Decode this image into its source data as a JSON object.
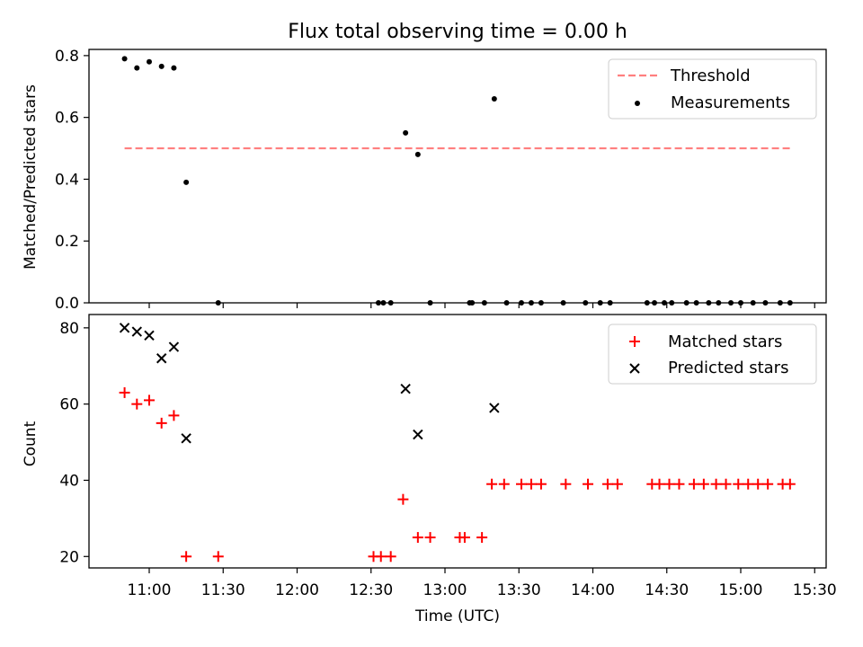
{
  "title": "Flux total observing time = 0.00 h",
  "xlabel": "Time (UTC)",
  "x_ticks": [
    "11:00",
    "11:30",
    "12:00",
    "12:30",
    "13:00",
    "13:30",
    "14:00",
    "14:30",
    "15:00",
    "15:30"
  ],
  "colors": {
    "threshold": "#ff7f7f",
    "measurement": "#000000",
    "matched": "#ff0000",
    "predicted": "#000000"
  },
  "chart_data": [
    {
      "type": "scatter",
      "ylabel": "Matched/Predicted stars",
      "ylim": [
        0,
        0.82
      ],
      "y_ticks": [
        "0.0",
        "0.2",
        "0.4",
        "0.6",
        "0.8"
      ],
      "legend_position": "top-right",
      "series": [
        {
          "name": "Threshold",
          "style": "dashed-line",
          "x": [
            "10:50",
            "15:21"
          ],
          "y": [
            0.5,
            0.5
          ]
        },
        {
          "name": "Measurements",
          "style": "dot",
          "x": [
            "10:50",
            "10:55",
            "11:00",
            "11:05",
            "11:10",
            "11:15",
            "11:28",
            "12:33",
            "12:35",
            "12:38",
            "12:44",
            "12:49",
            "12:54",
            "13:10",
            "13:11",
            "13:16",
            "13:20",
            "13:25",
            "13:31",
            "13:35",
            "13:39",
            "13:48",
            "13:57",
            "14:03",
            "14:07",
            "14:22",
            "14:25",
            "14:29",
            "14:32",
            "14:38",
            "14:42",
            "14:47",
            "14:51",
            "14:56",
            "15:00",
            "15:05",
            "15:10",
            "15:16",
            "15:20"
          ],
          "y": [
            0.79,
            0.76,
            0.78,
            0.765,
            0.76,
            0.39,
            0.0,
            0.0,
            0.0,
            0.0,
            0.55,
            0.48,
            0.0,
            0.0,
            0.0,
            0.0,
            0.66,
            0.0,
            0.0,
            0.0,
            0.0,
            0.0,
            0.0,
            0.0,
            0.0,
            0.0,
            0.0,
            0.0,
            0.0,
            0.0,
            0.0,
            0.0,
            0.0,
            0.0,
            0.0,
            0.0,
            0.0,
            0.0,
            0.0
          ]
        }
      ]
    },
    {
      "type": "scatter",
      "ylabel": "Count",
      "ylim": [
        17,
        83.5
      ],
      "y_ticks": [
        "20",
        "40",
        "60",
        "80"
      ],
      "legend_position": "top-right",
      "series": [
        {
          "name": "Matched stars",
          "marker": "+",
          "x": [
            "10:50",
            "10:55",
            "11:00",
            "11:05",
            "11:10",
            "11:15",
            "11:28",
            "12:31",
            "12:34",
            "12:38",
            "12:43",
            "12:49",
            "12:54",
            "13:06",
            "13:08",
            "13:15",
            "13:19",
            "13:24",
            "13:31",
            "13:35",
            "13:39",
            "13:49",
            "13:58",
            "14:06",
            "14:10",
            "14:24",
            "14:27",
            "14:31",
            "14:35",
            "14:41",
            "14:45",
            "14:50",
            "14:54",
            "14:59",
            "15:03",
            "15:07",
            "15:11",
            "15:17",
            "15:20"
          ],
          "y": [
            63,
            60,
            61,
            55,
            57,
            20,
            20,
            20,
            20,
            20,
            35,
            25,
            25,
            25,
            25,
            25,
            39,
            39,
            39,
            39,
            39,
            39,
            39,
            39,
            39,
            39,
            39,
            39,
            39,
            39,
            39,
            39,
            39,
            39,
            39,
            39,
            39,
            39,
            39
          ]
        },
        {
          "name": "Predicted stars",
          "marker": "x",
          "x": [
            "10:50",
            "10:55",
            "11:00",
            "11:05",
            "11:10",
            "11:15",
            "12:44",
            "12:49",
            "13:20"
          ],
          "y": [
            80,
            79,
            78,
            72,
            75,
            51,
            64,
            52,
            59
          ]
        }
      ]
    }
  ]
}
